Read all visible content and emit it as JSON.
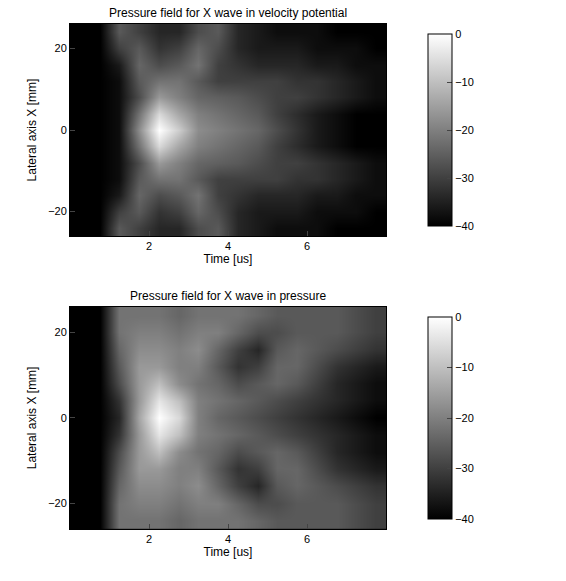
{
  "chart_data": [
    {
      "type": "heatmap",
      "title": "Pressure field for X wave in velocity potential",
      "x_label": "Time [us]",
      "y_label": "Lateral axis X [mm]",
      "color": "gray",
      "x": [
        0.25,
        0.75,
        1.25,
        1.75,
        2.25,
        2.75,
        3.25,
        3.75,
        4.25,
        4.75,
        5.25,
        5.75,
        6.25,
        6.75,
        7.25,
        7.75
      ],
      "y": [
        -24,
        -20,
        -16,
        -12,
        -8,
        -4,
        0,
        4,
        8,
        12,
        16,
        20,
        24
      ],
      "z": [
        [
          -40,
          -40,
          -26,
          -30,
          -34,
          -34,
          -28,
          -26,
          -34,
          -36,
          -38,
          -38,
          -38,
          -40,
          -40,
          -40
        ],
        [
          -40,
          -40,
          -30,
          -26,
          -32,
          -30,
          -24,
          -28,
          -34,
          -36,
          -36,
          -36,
          -38,
          -38,
          -38,
          -40
        ],
        [
          -40,
          -40,
          -36,
          -24,
          -28,
          -26,
          -22,
          -30,
          -32,
          -34,
          -34,
          -34,
          -36,
          -36,
          -38,
          -38
        ],
        [
          -40,
          -40,
          -38,
          -26,
          -22,
          -22,
          -26,
          -30,
          -30,
          -30,
          -30,
          -32,
          -32,
          -34,
          -36,
          -38
        ],
        [
          -40,
          -40,
          -38,
          -28,
          -16,
          -20,
          -24,
          -25,
          -26,
          -28,
          -30,
          -30,
          -32,
          -34,
          -36,
          -38
        ],
        [
          -40,
          -40,
          -38,
          -22,
          -6,
          -14,
          -20,
          -22,
          -24,
          -26,
          -30,
          -33,
          -36,
          -38,
          -40,
          -40
        ],
        [
          -40,
          -40,
          -38,
          -18,
          0,
          -8,
          -18,
          -20,
          -22,
          -24,
          -28,
          -32,
          -36,
          -38,
          -40,
          -40
        ],
        [
          -40,
          -40,
          -38,
          -22,
          -6,
          -14,
          -20,
          -22,
          -24,
          -26,
          -30,
          -33,
          -36,
          -38,
          -40,
          -40
        ],
        [
          -40,
          -40,
          -38,
          -28,
          -16,
          -20,
          -24,
          -25,
          -26,
          -28,
          -30,
          -30,
          -32,
          -34,
          -36,
          -38
        ],
        [
          -40,
          -40,
          -38,
          -26,
          -22,
          -22,
          -26,
          -30,
          -30,
          -30,
          -30,
          -32,
          -32,
          -34,
          -36,
          -38
        ],
        [
          -40,
          -40,
          -36,
          -24,
          -28,
          -26,
          -22,
          -30,
          -32,
          -34,
          -34,
          -34,
          -36,
          -36,
          -38,
          -38
        ],
        [
          -40,
          -40,
          -30,
          -26,
          -32,
          -30,
          -24,
          -28,
          -34,
          -36,
          -36,
          -36,
          -38,
          -38,
          -38,
          -40
        ],
        [
          -40,
          -40,
          -26,
          -30,
          -34,
          -34,
          -28,
          -26,
          -34,
          -36,
          -38,
          -38,
          -38,
          -40,
          -40,
          -40
        ]
      ],
      "xlim": [
        0,
        8
      ],
      "ylim": [
        -26,
        26
      ],
      "xticks": [
        2,
        4,
        6
      ],
      "yticks": [
        -20,
        0,
        20
      ],
      "colorbar_range": [
        -40,
        0
      ],
      "colorbar_ticks": [
        -40,
        -30,
        -20,
        -10,
        0
      ]
    },
    {
      "type": "heatmap",
      "title": "Pressure field for X wave in pressure",
      "x_label": "Time [us]",
      "y_label": "Lateral axis X [mm]",
      "color": "gray",
      "x": [
        0.25,
        0.75,
        1.25,
        1.75,
        2.25,
        2.75,
        3.25,
        3.75,
        4.25,
        4.75,
        5.25,
        5.75,
        6.25,
        6.75,
        7.25,
        7.75
      ],
      "y": [
        -24,
        -20,
        -16,
        -12,
        -8,
        -4,
        0,
        4,
        8,
        12,
        16,
        20,
        24
      ],
      "z": [
        [
          -40,
          -40,
          -22,
          -22,
          -22,
          -24,
          -22,
          -22,
          -22,
          -24,
          -26,
          -26,
          -26,
          -26,
          -28,
          -30
        ],
        [
          -40,
          -40,
          -22,
          -20,
          -20,
          -22,
          -20,
          -20,
          -24,
          -28,
          -28,
          -26,
          -26,
          -26,
          -28,
          -30
        ],
        [
          -40,
          -40,
          -24,
          -18,
          -18,
          -20,
          -18,
          -24,
          -30,
          -34,
          -26,
          -24,
          -26,
          -28,
          -30,
          -32
        ],
        [
          -40,
          -40,
          -26,
          -16,
          -16,
          -20,
          -20,
          -26,
          -32,
          -30,
          -24,
          -24,
          -28,
          -32,
          -34,
          -36
        ],
        [
          -40,
          -40,
          -28,
          -16,
          -10,
          -18,
          -22,
          -24,
          -28,
          -26,
          -24,
          -26,
          -30,
          -34,
          -36,
          -38
        ],
        [
          -40,
          -40,
          -32,
          -16,
          -4,
          -10,
          -20,
          -22,
          -24,
          -26,
          -28,
          -30,
          -32,
          -34,
          -36,
          -38
        ],
        [
          -40,
          -40,
          -34,
          -14,
          0,
          -6,
          -20,
          -24,
          -26,
          -28,
          -30,
          -32,
          -34,
          -36,
          -38,
          -40
        ],
        [
          -40,
          -40,
          -32,
          -16,
          -4,
          -10,
          -20,
          -22,
          -24,
          -26,
          -28,
          -30,
          -32,
          -34,
          -36,
          -38
        ],
        [
          -40,
          -40,
          -28,
          -16,
          -10,
          -18,
          -22,
          -24,
          -28,
          -26,
          -24,
          -26,
          -30,
          -34,
          -36,
          -38
        ],
        [
          -40,
          -40,
          -26,
          -16,
          -16,
          -20,
          -20,
          -26,
          -32,
          -30,
          -24,
          -24,
          -28,
          -32,
          -34,
          -36
        ],
        [
          -40,
          -40,
          -24,
          -18,
          -18,
          -20,
          -18,
          -24,
          -30,
          -34,
          -26,
          -24,
          -26,
          -28,
          -30,
          -32
        ],
        [
          -40,
          -40,
          -22,
          -20,
          -20,
          -22,
          -20,
          -20,
          -24,
          -28,
          -28,
          -26,
          -26,
          -26,
          -28,
          -30
        ],
        [
          -40,
          -40,
          -22,
          -22,
          -22,
          -24,
          -22,
          -22,
          -22,
          -24,
          -26,
          -26,
          -26,
          -26,
          -28,
          -30
        ]
      ],
      "xlim": [
        0,
        8
      ],
      "ylim": [
        -26,
        26
      ],
      "xticks": [
        2,
        4,
        6
      ],
      "yticks": [
        -20,
        0,
        20
      ],
      "colorbar_range": [
        -40,
        0
      ],
      "colorbar_ticks": [
        -40,
        -30,
        -20,
        -10,
        0
      ]
    }
  ]
}
